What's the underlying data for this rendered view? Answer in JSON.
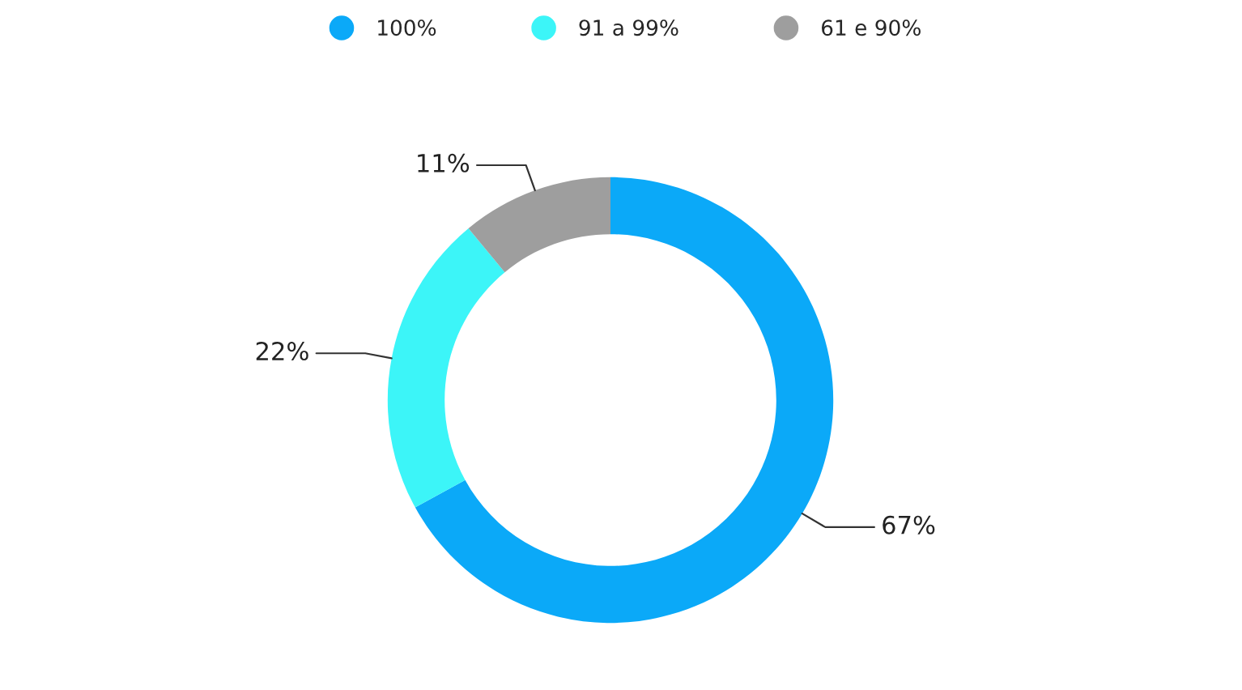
{
  "chart_data": {
    "type": "donut",
    "categories": [
      "100%",
      "91 a 99%",
      "61 e 90%"
    ],
    "values": [
      67,
      22,
      11
    ],
    "value_labels": [
      "67%",
      "22%",
      "11%"
    ],
    "colors": [
      "#0ba9f8",
      "#3cf5f8",
      "#9e9e9e"
    ],
    "legend": "top"
  }
}
